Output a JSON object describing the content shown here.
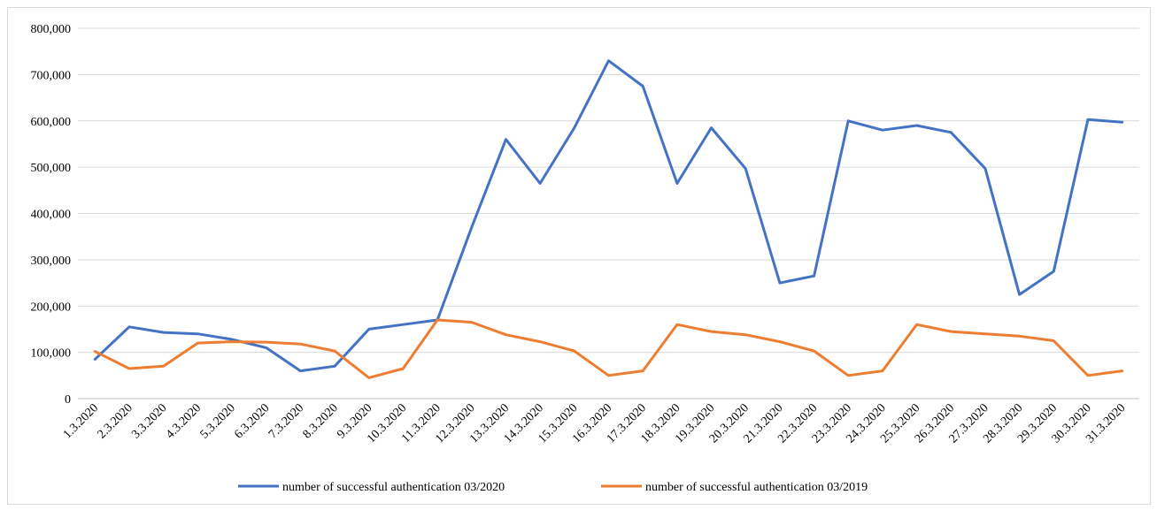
{
  "chart_data": {
    "type": "line",
    "title": "",
    "xlabel": "",
    "ylabel": "",
    "ylim": [
      0,
      800000
    ],
    "yticks": [
      "0",
      "100,000",
      "200,000",
      "300,000",
      "400,000",
      "500,000",
      "600,000",
      "700,000",
      "800,000"
    ],
    "grid": "horizontal",
    "legend_position": "bottom",
    "categories": [
      "1.3.2020",
      "2.3.2020",
      "3.3.2020",
      "4.3.2020",
      "5.3.2020",
      "6.3.2020",
      "7.3.2020",
      "8.3.2020",
      "9.3.2020",
      "10.3.2020",
      "11.3.2020",
      "12.3.2020",
      "13.3.2020",
      "14.3.2020",
      "15.3.2020",
      "16.3.2020",
      "17.3.2020",
      "18.3.2020",
      "19.3.2020",
      "20.3.2020",
      "21.3.2020",
      "22.3.2020",
      "23.3.2020",
      "24.3.2020",
      "25.3.2020",
      "26.3.2020",
      "27.3.2020",
      "28.3.2020",
      "29.3.2020",
      "30.3.2020",
      "31.3.2020"
    ],
    "series": [
      {
        "name": "number of successful authentication 03/2020",
        "color": "#4472C4",
        "values": [
          85000,
          155000,
          143000,
          140000,
          128000,
          110000,
          60000,
          70000,
          150000,
          160000,
          170000,
          370000,
          560000,
          465000,
          585000,
          730000,
          675000,
          465000,
          585000,
          497000,
          250000,
          265000,
          600000,
          580000,
          590000,
          575000,
          497000,
          225000,
          275000,
          603000,
          597000
        ]
      },
      {
        "name": "number of successful authentication 03/2019",
        "color": "#ED7D31",
        "values": [
          102000,
          65000,
          70000,
          120000,
          123000,
          122000,
          118000,
          103000,
          45000,
          65000,
          170000,
          165000,
          138000,
          123000,
          103000,
          50000,
          60000,
          160000,
          145000,
          138000,
          123000,
          103000,
          50000,
          60000,
          160000,
          145000,
          140000,
          135000,
          125000,
          50000,
          60000
        ]
      }
    ]
  }
}
